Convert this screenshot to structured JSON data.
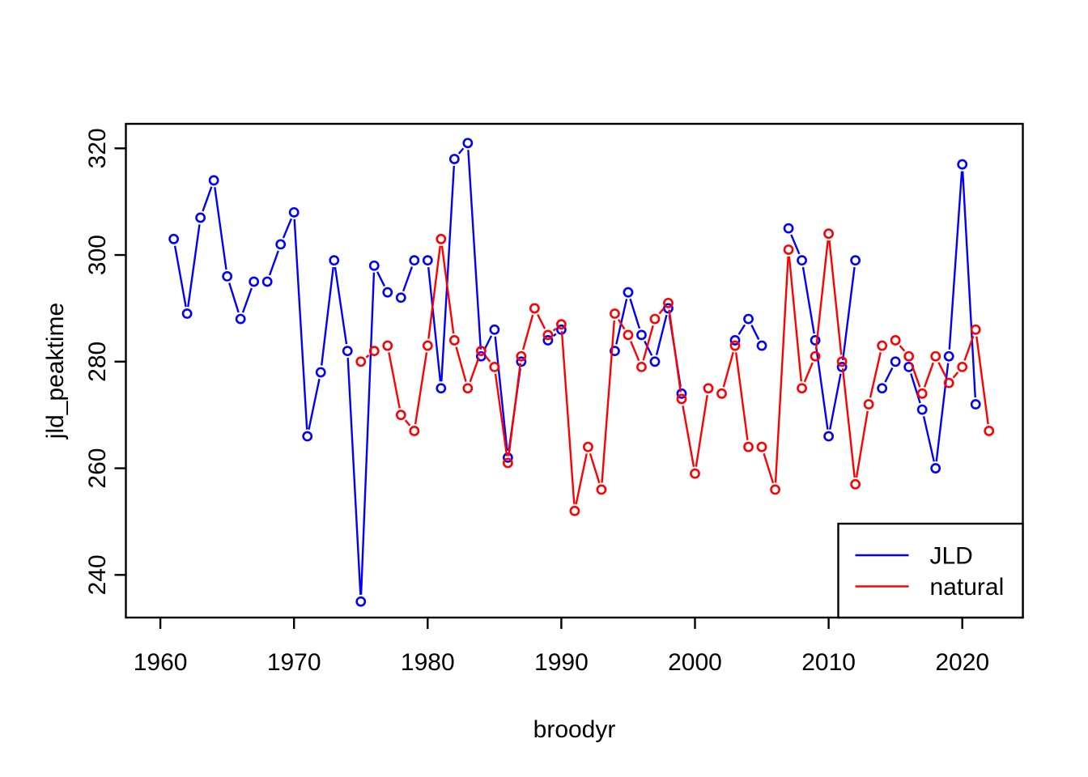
{
  "figure": {
    "background": "#ffffff",
    "frame_color": "#000000"
  },
  "chart_data": {
    "type": "line",
    "title": "",
    "xlabel": "broodyr",
    "ylabel": "jld_peaktime",
    "grid": false,
    "marker": "open-circle",
    "line_style": "segments-with-gaps-at-points",
    "xlim": [
      1957.42,
      2024.53
    ],
    "ylim": [
      232.0,
      324.6
    ],
    "x_ticks": [
      1960,
      1970,
      1980,
      1990,
      2000,
      2010,
      2020
    ],
    "y_ticks": [
      240,
      260,
      280,
      300,
      320
    ],
    "legend": {
      "position": "bottom-right",
      "entries": [
        {
          "label": "JLD",
          "color": "#0000FF"
        },
        {
          "label": "natural",
          "color": "#FF0000"
        }
      ]
    },
    "x": [
      1961,
      1962,
      1963,
      1964,
      1965,
      1966,
      1967,
      1968,
      1969,
      1970,
      1971,
      1972,
      1973,
      1974,
      1975,
      1976,
      1977,
      1978,
      1979,
      1980,
      1981,
      1982,
      1983,
      1984,
      1985,
      1986,
      1987,
      1988,
      1989,
      1990,
      1991,
      1992,
      1993,
      1994,
      1995,
      1996,
      1997,
      1998,
      1999,
      2000,
      2001,
      2002,
      2003,
      2004,
      2005,
      2006,
      2007,
      2008,
      2009,
      2010,
      2011,
      2012,
      2013,
      2014,
      2015,
      2016,
      2017,
      2018,
      2019,
      2020,
      2021,
      2022
    ],
    "series": [
      {
        "name": "JLD",
        "color": "#0000FF",
        "values": [
          303,
          289,
          307,
          314,
          296,
          288,
          295,
          295,
          302,
          308,
          266,
          278,
          299,
          282,
          235,
          298,
          293,
          292,
          299,
          299,
          275,
          318,
          321,
          281,
          286,
          262,
          280,
          null,
          284,
          286,
          null,
          null,
          null,
          282,
          293,
          285,
          280,
          290,
          274,
          null,
          null,
          null,
          284,
          288,
          283,
          null,
          305,
          299,
          284,
          266,
          279,
          299,
          null,
          275,
          280,
          279,
          271,
          260,
          281,
          317,
          272,
          null
        ]
      },
      {
        "name": "natural",
        "color": "#FF0000",
        "values": [
          null,
          null,
          null,
          null,
          null,
          null,
          null,
          null,
          null,
          null,
          null,
          null,
          null,
          null,
          280,
          282,
          283,
          270,
          267,
          283,
          303,
          284,
          275,
          282,
          279,
          261,
          281,
          290,
          285,
          287,
          252,
          264,
          256,
          289,
          285,
          279,
          288,
          291,
          273,
          259,
          275,
          274,
          283,
          264,
          264,
          256,
          301,
          275,
          281,
          304,
          280,
          257,
          272,
          283,
          284,
          281,
          274,
          281,
          276,
          279,
          286,
          267
        ]
      }
    ]
  }
}
